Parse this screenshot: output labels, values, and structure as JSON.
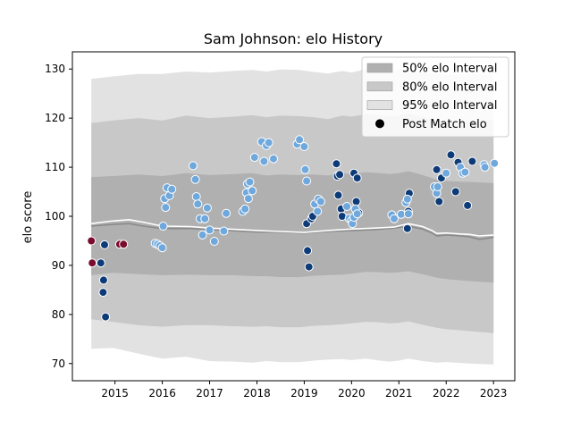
{
  "chart_data": {
    "type": "scatter",
    "title": "Sam Johnson: elo History",
    "xlabel": "",
    "ylabel": "elo score",
    "xlim": [
      2014.1,
      2023.45
    ],
    "ylim": [
      66.5,
      133.5
    ],
    "xticks": [
      2015,
      2016,
      2017,
      2018,
      2019,
      2020,
      2021,
      2022,
      2023
    ],
    "yticks": [
      70,
      80,
      90,
      100,
      110,
      120,
      130
    ],
    "grid": false,
    "legend_position": "top-right",
    "legend": [
      {
        "label": "50% elo Interval",
        "kind": "band",
        "color": "#b0b0b0"
      },
      {
        "label": "80% elo Interval",
        "kind": "band",
        "color": "#c8c8c8"
      },
      {
        "label": "95% elo Interval",
        "kind": "band",
        "color": "#e2e2e2"
      },
      {
        "label": "Post Match elo",
        "kind": "marker",
        "color": "#000000"
      }
    ],
    "colors": {
      "band50": "#b0b0b0",
      "band80": "#c8c8c8",
      "band95": "#e2e2e2",
      "median_line": "#8a8a8a",
      "mean_line": "#ffffff",
      "maroon": "#7a0c2e",
      "navy": "#0d3b78",
      "light_blue": "#6fa8dc"
    },
    "bands": {
      "x": [
        2014.5,
        2014.95,
        2015.5,
        2016.0,
        2016.5,
        2017.0,
        2017.5,
        2017.9,
        2018.2,
        2018.5,
        2018.9,
        2019.2,
        2019.5,
        2019.8,
        2020.0,
        2020.3,
        2020.6,
        2020.8,
        2021.0,
        2021.2,
        2021.5,
        2021.8,
        2022.0,
        2022.5,
        2023.0
      ],
      "p95_upper": [
        128,
        128.5,
        129,
        129,
        129.5,
        129.3,
        129.6,
        129.8,
        129.5,
        129.9,
        129.8,
        129.4,
        129.1,
        129.6,
        129.3,
        130.0,
        129.8,
        129.6,
        129.9,
        130.0,
        129.4,
        129.0,
        128.8,
        129.0,
        128.8
      ],
      "p80_upper": [
        119,
        119.5,
        120,
        119.5,
        120.5,
        120.0,
        120.3,
        120.6,
        120.2,
        120.5,
        120.4,
        120.2,
        119.8,
        120.5,
        120.3,
        120.8,
        120.6,
        120.4,
        120.5,
        121.0,
        120.2,
        119.5,
        119.2,
        119.5,
        119.5
      ],
      "p50_upper": [
        108,
        108.2,
        108.5,
        108.2,
        108.8,
        108.4,
        108.6,
        108.8,
        108.3,
        108.5,
        108.4,
        108.5,
        108.3,
        108.8,
        108.6,
        109.0,
        108.8,
        108.6,
        108.8,
        109.2,
        108.4,
        107.5,
        107.2,
        107.0,
        106.8
      ],
      "p50_lower": [
        88,
        88.5,
        88.2,
        88.0,
        88.1,
        88.0,
        88.0,
        87.8,
        87.8,
        87.6,
        87.6,
        87.9,
        88.0,
        88.1,
        88.3,
        88.7,
        88.6,
        88.5,
        88.6,
        88.8,
        88.2,
        87.5,
        87.2,
        86.8,
        86.5
      ],
      "p80_lower": [
        79,
        78.5,
        77.8,
        77.5,
        77.8,
        77.8,
        77.6,
        77.5,
        77.6,
        77.4,
        77.4,
        77.7,
        77.8,
        78.0,
        78.2,
        78.5,
        78.4,
        78.2,
        78.3,
        78.6,
        77.9,
        77.3,
        77.0,
        76.6,
        76.2
      ],
      "p95_lower": [
        73,
        73.2,
        72.0,
        71.0,
        71.4,
        70.5,
        70.4,
        70.2,
        70.5,
        70.3,
        70.3,
        70.6,
        70.8,
        70.9,
        70.7,
        71.0,
        70.6,
        70.4,
        70.6,
        71.0,
        70.5,
        70.2,
        70.3,
        70.0,
        69.8
      ]
    },
    "median_line": {
      "x": [
        2014.5,
        2014.9,
        2015.3,
        2015.6,
        2016.0,
        2016.6,
        2017.0,
        2017.6,
        2018.0,
        2018.5,
        2019.0,
        2019.5,
        2020.0,
        2020.5,
        2020.9,
        2021.2,
        2021.5,
        2021.7,
        2021.8,
        2022.0,
        2022.3,
        2022.5,
        2022.7,
        2023.0
      ],
      "y": [
        98.0,
        98.3,
        98.5,
        98.0,
        97.5,
        97.5,
        97.3,
        97.0,
        96.8,
        96.8,
        96.6,
        96.9,
        97.1,
        97.3,
        97.6,
        98.0,
        97.4,
        96.6,
        96.0,
        96.2,
        96.0,
        95.8,
        95.3,
        95.7
      ]
    },
    "mean_line": {
      "x": [
        2014.5,
        2014.9,
        2015.3,
        2015.6,
        2016.0,
        2016.6,
        2017.0,
        2017.6,
        2018.0,
        2018.5,
        2019.0,
        2019.5,
        2020.0,
        2020.5,
        2020.9,
        2021.2,
        2021.5,
        2021.7,
        2021.8,
        2022.0,
        2022.3,
        2022.5,
        2022.7,
        2023.0
      ],
      "y": [
        98.5,
        99.0,
        99.3,
        98.8,
        98.0,
        97.9,
        97.6,
        97.3,
        97.1,
        96.9,
        96.7,
        97.1,
        97.4,
        97.6,
        97.8,
        98.5,
        97.9,
        97.1,
        96.5,
        96.6,
        96.4,
        96.3,
        96.0,
        96.2
      ]
    },
    "series": [
      {
        "group": "maroon",
        "x": [
          2014.5,
          2014.52,
          2015.1,
          2015.18
        ],
        "y": [
          95.0,
          90.5,
          94.3,
          94.3
        ]
      },
      {
        "group": "navy",
        "x": [
          2014.7,
          2014.75,
          2014.76,
          2014.78,
          2014.8,
          2019.05,
          2019.07,
          2019.1,
          2019.15,
          2019.18,
          2019.68,
          2019.7,
          2019.72,
          2019.75,
          2019.78,
          2019.8,
          2020.05,
          2020.1,
          2020.12,
          2020.15,
          2021.18,
          2021.2,
          2021.22,
          2021.8,
          2021.85,
          2021.9,
          2022.1,
          2022.2,
          2022.25,
          2022.45,
          2022.55
        ],
        "y": [
          90.5,
          84.5,
          87.0,
          94.2,
          79.5,
          98.5,
          93.0,
          89.7,
          99.5,
          100.0,
          110.7,
          108.2,
          104.3,
          108.5,
          101.5,
          100.0,
          108.8,
          103.0,
          107.8,
          100.7,
          97.5,
          101.0,
          104.7,
          109.5,
          103.0,
          107.8,
          112.5,
          105.0,
          111.0,
          102.2,
          111.2
        ]
      },
      {
        "group": "light_blue",
        "x": [
          2015.85,
          2015.9,
          2015.95,
          2016.0,
          2016.02,
          2016.05,
          2016.07,
          2016.1,
          2016.15,
          2016.2,
          2016.65,
          2016.7,
          2016.72,
          2016.75,
          2016.8,
          2016.85,
          2016.9,
          2016.95,
          2017.0,
          2017.1,
          2017.3,
          2017.35,
          2017.7,
          2017.75,
          2017.78,
          2017.8,
          2017.82,
          2017.85,
          2017.9,
          2017.95,
          2018.1,
          2018.15,
          2018.2,
          2018.25,
          2018.35,
          2018.85,
          2018.9,
          2019.0,
          2019.02,
          2019.05,
          2019.22,
          2019.28,
          2019.3,
          2019.35,
          2019.9,
          2019.95,
          2020.0,
          2020.02,
          2020.05,
          2020.08,
          2020.12,
          2020.85,
          2020.9,
          2021.05,
          2021.15,
          2021.18,
          2021.2,
          2021.75,
          2021.8,
          2021.82,
          2022.0,
          2022.3,
          2022.35,
          2022.4,
          2022.8,
          2022.82,
          2023.02
        ],
        "y": [
          94.5,
          94.3,
          94.0,
          93.6,
          98.0,
          103.6,
          101.8,
          105.8,
          104.2,
          105.5,
          110.3,
          107.5,
          104.0,
          102.5,
          99.5,
          96.2,
          99.5,
          101.7,
          97.2,
          94.9,
          97.0,
          100.6,
          101.0,
          101.5,
          104.8,
          106.6,
          103.6,
          107.0,
          105.2,
          112.0,
          115.2,
          111.2,
          114.4,
          115.0,
          111.7,
          114.7,
          115.6,
          114.2,
          109.5,
          107.2,
          102.5,
          101.0,
          103.5,
          103.0,
          102.0,
          99.6,
          99.1,
          98.5,
          99.8,
          101.5,
          100.5,
          100.3,
          99.5,
          100.4,
          102.8,
          103.5,
          100.5,
          106.0,
          104.7,
          106.0,
          108.8,
          110.0,
          108.8,
          109.0,
          110.5,
          110.0,
          110.8
        ]
      }
    ]
  }
}
